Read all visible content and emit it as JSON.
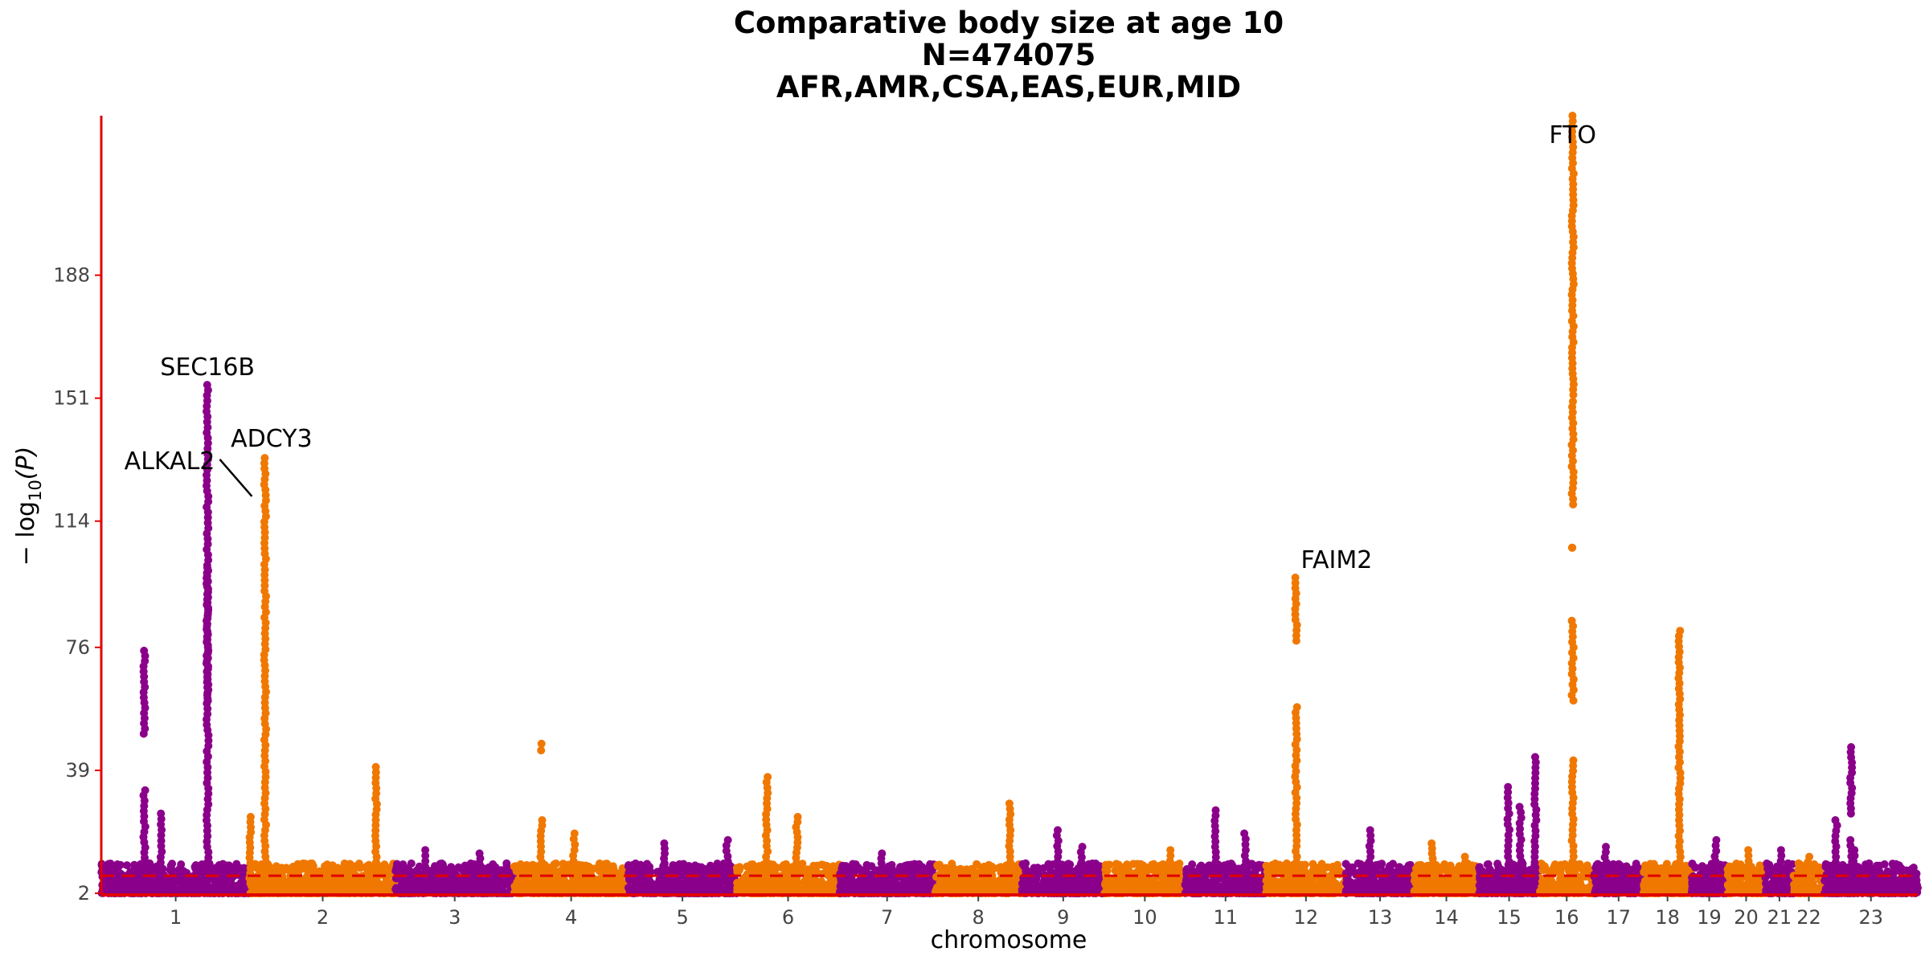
{
  "chart_data": {
    "type": "scatter",
    "subtype": "manhattan",
    "title": [
      "Comparative body size at age 10",
      "N=474075",
      "AFR,AMR,CSA,EAS,EUR,MID"
    ],
    "xlabel": "chromosome",
    "ylabel_prefix": "− log",
    "ylabel_sub": "10",
    "ylabel_suffix": "(P)",
    "ylim": [
      2,
      236
    ],
    "yticks": [
      2,
      39,
      76,
      114,
      151,
      188
    ],
    "grid": false,
    "significance_line": 7.3,
    "colors": {
      "odd": "#8B008B",
      "even": "#F07800",
      "threshold": "#E00000",
      "axis": "#E00000"
    },
    "chromosomes": [
      {
        "label": "1",
        "length": 248
      },
      {
        "label": "2",
        "length": 242
      },
      {
        "label": "3",
        "length": 198
      },
      {
        "label": "4",
        "length": 190
      },
      {
        "label": "5",
        "length": 181
      },
      {
        "label": "6",
        "length": 171
      },
      {
        "label": "7",
        "length": 159
      },
      {
        "label": "8",
        "length": 145
      },
      {
        "label": "9",
        "length": 138
      },
      {
        "label": "10",
        "length": 134
      },
      {
        "label": "11",
        "length": 135
      },
      {
        "label": "12",
        "length": 133
      },
      {
        "label": "13",
        "length": 114
      },
      {
        "label": "14",
        "length": 107
      },
      {
        "label": "15",
        "length": 102
      },
      {
        "label": "16",
        "length": 90
      },
      {
        "label": "17",
        "length": 83
      },
      {
        "label": "18",
        "length": 80
      },
      {
        "label": "19",
        "length": 59
      },
      {
        "label": "20",
        "length": 64
      },
      {
        "label": "21",
        "length": 47
      },
      {
        "label": "22",
        "length": 51
      },
      {
        "label": "23",
        "length": 156
      }
    ],
    "peaks": [
      {
        "chr": "1",
        "pos": 72,
        "max": 75,
        "min": 50
      },
      {
        "chr": "1",
        "pos": 72,
        "max": 33,
        "min": 8
      },
      {
        "chr": "1",
        "pos": 100,
        "max": 26,
        "min": 8
      },
      {
        "chr": "1",
        "pos": 177,
        "max": 155,
        "min": 8
      },
      {
        "chr": "1",
        "pos": 177,
        "max": 100,
        "min": 60
      },
      {
        "chr": "2",
        "pos": 0,
        "max": 25,
        "min": 5
      },
      {
        "chr": "2",
        "pos": 25,
        "max": 133,
        "min": 5
      },
      {
        "chr": "2",
        "pos": 210,
        "max": 40,
        "min": 5
      },
      {
        "chr": "3",
        "pos": 50,
        "max": 15,
        "min": 5
      },
      {
        "chr": "3",
        "pos": 140,
        "max": 14,
        "min": 5
      },
      {
        "chr": "4",
        "pos": 45,
        "max": 47,
        "min": 45
      },
      {
        "chr": "4",
        "pos": 45,
        "max": 24,
        "min": 5
      },
      {
        "chr": "4",
        "pos": 100,
        "max": 20,
        "min": 5
      },
      {
        "chr": "5",
        "pos": 60,
        "max": 17,
        "min": 5
      },
      {
        "chr": "5",
        "pos": 165,
        "max": 18,
        "min": 5
      },
      {
        "chr": "6",
        "pos": 50,
        "max": 37,
        "min": 5
      },
      {
        "chr": "6",
        "pos": 100,
        "max": 25,
        "min": 5
      },
      {
        "chr": "7",
        "pos": 70,
        "max": 14,
        "min": 5
      },
      {
        "chr": "8",
        "pos": 125,
        "max": 29,
        "min": 5
      },
      {
        "chr": "9",
        "pos": 60,
        "max": 21,
        "min": 5
      },
      {
        "chr": "9",
        "pos": 100,
        "max": 16,
        "min": 5
      },
      {
        "chr": "10",
        "pos": 110,
        "max": 15,
        "min": 5
      },
      {
        "chr": "11",
        "pos": 50,
        "max": 27,
        "min": 5
      },
      {
        "chr": "11",
        "pos": 100,
        "max": 20,
        "min": 5
      },
      {
        "chr": "12",
        "pos": 50,
        "max": 97,
        "min": 78
      },
      {
        "chr": "12",
        "pos": 50,
        "max": 58,
        "min": 5
      },
      {
        "chr": "13",
        "pos": 40,
        "max": 21,
        "min": 5
      },
      {
        "chr": "14",
        "pos": 30,
        "max": 17,
        "min": 5
      },
      {
        "chr": "14",
        "pos": 85,
        "max": 13,
        "min": 5
      },
      {
        "chr": "15",
        "pos": 50,
        "max": 34,
        "min": 5
      },
      {
        "chr": "15",
        "pos": 70,
        "max": 28,
        "min": 5
      },
      {
        "chr": "15",
        "pos": 95,
        "max": 43,
        "min": 5
      },
      {
        "chr": "16",
        "pos": 55,
        "max": 236,
        "min": 152
      },
      {
        "chr": "16",
        "pos": 55,
        "max": 150,
        "min": 119
      },
      {
        "chr": "16",
        "pos": 55,
        "max": 106,
        "min": 106
      },
      {
        "chr": "16",
        "pos": 55,
        "max": 84,
        "min": 60
      },
      {
        "chr": "16",
        "pos": 55,
        "max": 42,
        "min": 5
      },
      {
        "chr": "17",
        "pos": 20,
        "max": 16,
        "min": 5
      },
      {
        "chr": "18",
        "pos": 60,
        "max": 81,
        "min": 5
      },
      {
        "chr": "19",
        "pos": 40,
        "max": 18,
        "min": 5
      },
      {
        "chr": "20",
        "pos": 35,
        "max": 15,
        "min": 5
      },
      {
        "chr": "21",
        "pos": 25,
        "max": 15,
        "min": 5
      },
      {
        "chr": "22",
        "pos": 25,
        "max": 13,
        "min": 5
      },
      {
        "chr": "23",
        "pos": 20,
        "max": 24,
        "min": 5
      },
      {
        "chr": "23",
        "pos": 45,
        "max": 46,
        "min": 26
      },
      {
        "chr": "23",
        "pos": 45,
        "max": 18,
        "min": 5
      },
      {
        "chr": "23",
        "pos": 50,
        "max": 15,
        "min": 5
      }
    ],
    "annotations": [
      {
        "text": "SEC16B",
        "chr": "1",
        "pos": 177,
        "y": 155
      },
      {
        "text": "ADCY3",
        "chr": "2",
        "pos": 25,
        "y": 133
      },
      {
        "text": "ALKAL2",
        "chr": "2",
        "pos": 3,
        "y": 120,
        "leader": true
      },
      {
        "text": "FAIM2",
        "chr": "12",
        "pos": 50,
        "y": 97
      },
      {
        "text": "FTO",
        "chr": "16",
        "pos": 55,
        "y": 236
      }
    ]
  }
}
